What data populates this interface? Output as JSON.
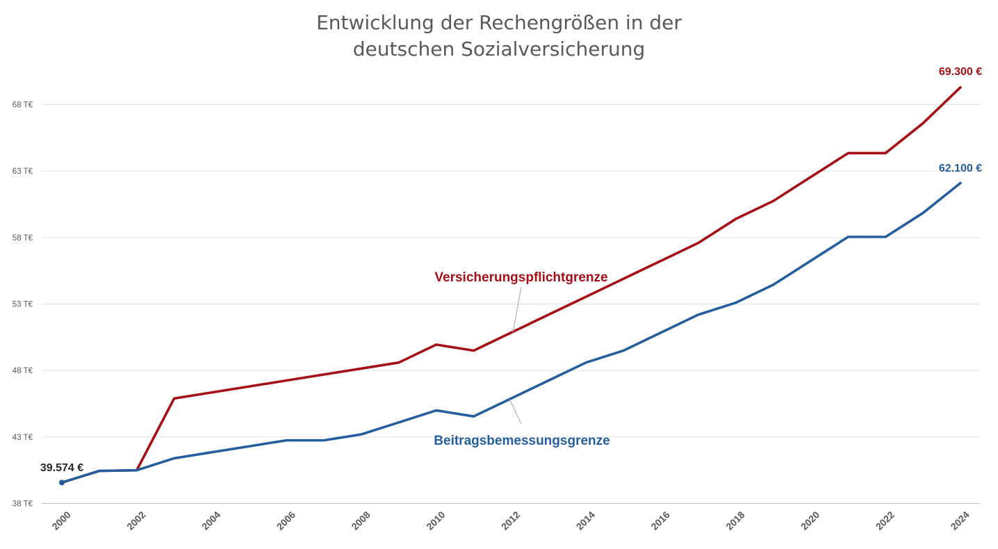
{
  "chart_data": {
    "type": "line",
    "title": [
      "Entwicklung der Rechengrößen in der",
      "deutschen Sozialversicherung"
    ],
    "xlabel": "",
    "ylabel": "",
    "x": [
      2000,
      2001,
      2002,
      2003,
      2004,
      2005,
      2006,
      2007,
      2008,
      2009,
      2010,
      2011,
      2012,
      2013,
      2014,
      2015,
      2016,
      2017,
      2018,
      2019,
      2020,
      2021,
      2022,
      2023,
      2024
    ],
    "xticks": [
      "2000",
      "2002",
      "2004",
      "2006",
      "2008",
      "2010",
      "2012",
      "2014",
      "2016",
      "2018",
      "2020",
      "2022",
      "2024"
    ],
    "ylim": [
      38000,
      70000
    ],
    "yticks": [
      {
        "value": 38000,
        "label": "38 T€"
      },
      {
        "value": 43000,
        "label": "43 T€"
      },
      {
        "value": 48000,
        "label": "48 T€"
      },
      {
        "value": 53000,
        "label": "53 T€"
      },
      {
        "value": 58000,
        "label": "58 T€"
      },
      {
        "value": 63000,
        "label": "63 T€"
      },
      {
        "value": 68000,
        "label": "68 T€"
      }
    ],
    "grid": true,
    "legend": "inline labels",
    "series": [
      {
        "name": "Versicherungspflichtgrenze",
        "color": "#a50f15",
        "values": [
          39574,
          40450,
          40500,
          45900,
          46350,
          46800,
          47250,
          47700,
          48150,
          48600,
          49950,
          49500,
          50850,
          52200,
          53550,
          54900,
          56250,
          57600,
          59400,
          60750,
          62550,
          64350,
          64350,
          66600,
          69300
        ]
      },
      {
        "name": "Beitragsbemessungsgrenze",
        "color": "#255e9e",
        "values": [
          39574,
          40450,
          40500,
          41400,
          41850,
          42300,
          42750,
          42750,
          43200,
          44100,
          45000,
          44550,
          45900,
          47250,
          48600,
          49500,
          50850,
          52200,
          53100,
          54450,
          56250,
          58050,
          58050,
          59850,
          62100
        ]
      }
    ],
    "annotations": [
      {
        "text": "39.574 €",
        "color": "#262626"
      },
      {
        "text": "69.300 €",
        "color": "#a50f15"
      },
      {
        "text": "62.100 €",
        "color": "#255e9e"
      }
    ]
  }
}
